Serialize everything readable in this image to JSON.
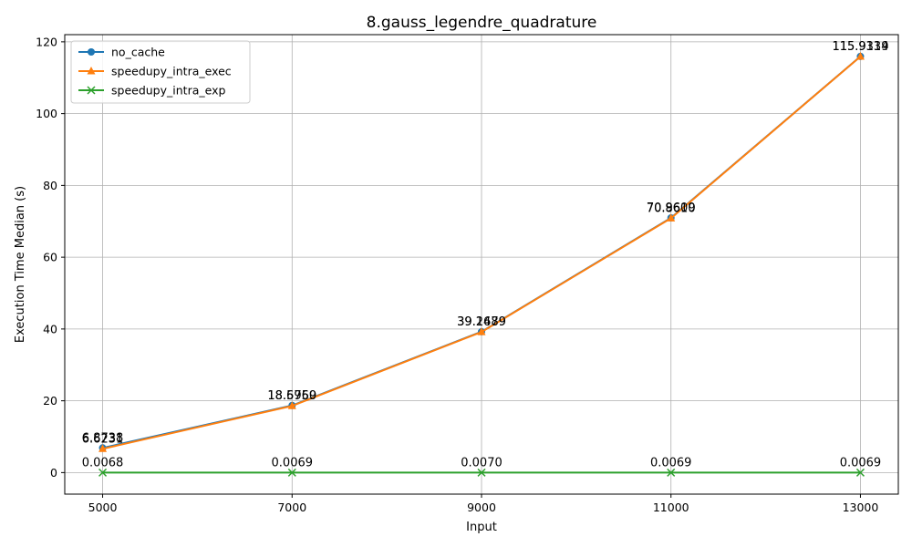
{
  "chart_data": {
    "type": "line",
    "title": "8.gauss_legendre_quadrature",
    "xlabel": "Input",
    "ylabel": "Execution Time Median (s)",
    "x": [
      5000,
      7000,
      9000,
      11000,
      13000
    ],
    "x_ticks": [
      5000,
      7000,
      9000,
      11000,
      13000
    ],
    "y_ticks": [
      0,
      20,
      40,
      60,
      80,
      100,
      120
    ],
    "xlim": [
      4600,
      13400
    ],
    "ylim": [
      -6,
      122
    ],
    "grid": true,
    "legend_position": "upper-left",
    "series": [
      {
        "name": "no_cache",
        "color": "#1f77b4",
        "marker": "circle",
        "values": [
          6.8738,
          18.696,
          39.2479,
          70.9609,
          115.9334
        ],
        "labels": [
          "6.8738",
          "18.6960",
          "39.2479",
          "70.9609",
          "115.9334"
        ]
      },
      {
        "name": "speedupy_intra_exec",
        "color": "#ff7f0e",
        "marker": "triangle",
        "values": [
          6.6231,
          18.5759,
          39.1689,
          70.861,
          115.9119
        ],
        "labels": [
          "6.6231",
          "18.5759",
          "39.1689",
          "70.8610",
          "115.9119"
        ]
      },
      {
        "name": "speedupy_intra_exp",
        "color": "#2ca02c",
        "marker": "x",
        "values": [
          0.0068,
          0.0069,
          0.007,
          0.0069,
          0.0069
        ],
        "labels": [
          "0.0068",
          "0.0069",
          "0.0070",
          "0.0069",
          "0.0069"
        ]
      }
    ]
  }
}
